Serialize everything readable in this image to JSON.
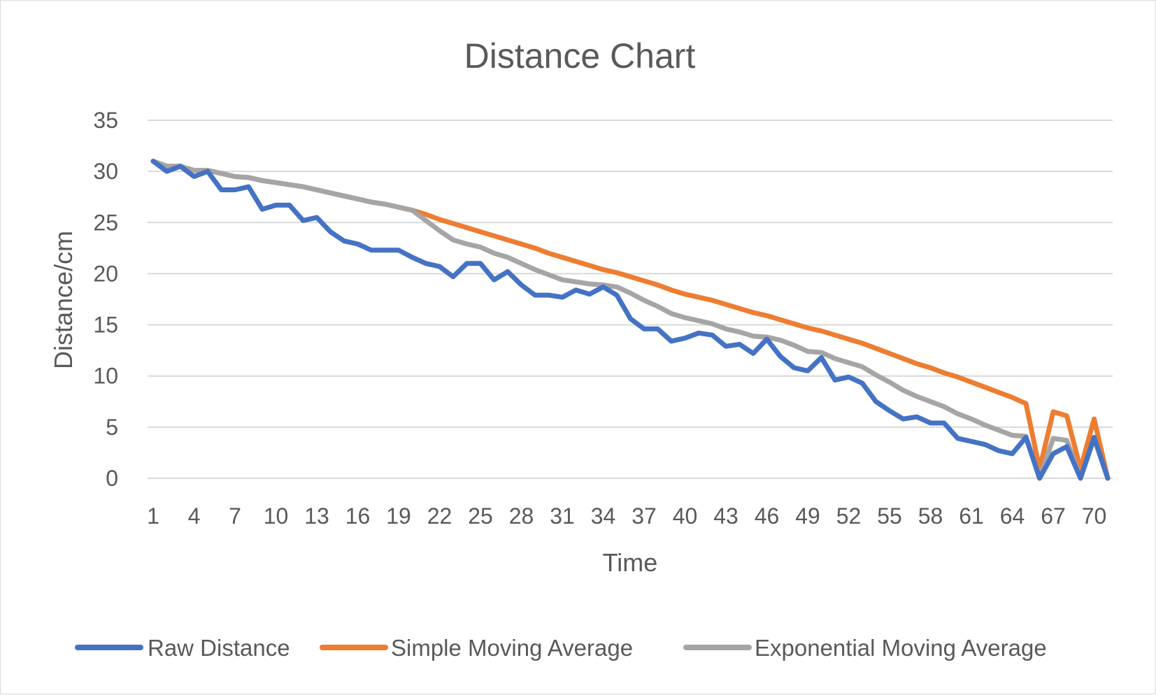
{
  "chart_data": {
    "type": "line",
    "title": "Distance Chart",
    "xlabel": "Time",
    "ylabel": "Distance/cm",
    "ylim": [
      0,
      35
    ],
    "yticks": [
      0,
      5,
      10,
      15,
      20,
      25,
      30,
      35
    ],
    "xlim": [
      1,
      71
    ],
    "xtick_labels": [
      "1",
      "4",
      "7",
      "10",
      "13",
      "16",
      "19",
      "22",
      "25",
      "28",
      "31",
      "34",
      "37",
      "40",
      "43",
      "46",
      "49",
      "52",
      "55",
      "58",
      "61",
      "64",
      "67",
      "70"
    ],
    "grid": true,
    "legend_position": "bottom",
    "series": [
      {
        "name": "Raw Distance",
        "color": "#4472c4",
        "values": [
          31,
          30,
          30.5,
          29.5,
          30,
          28.2,
          28.2,
          28.5,
          26.3,
          26.7,
          26.7,
          25.2,
          25.5,
          24.1,
          23.2,
          22.9,
          22.3,
          22.3,
          22.3,
          21.6,
          21,
          20.7,
          19.7,
          21,
          21,
          19.4,
          20.2,
          18.9,
          17.9,
          17.9,
          17.7,
          18.4,
          18,
          18.7,
          17.9,
          15.6,
          14.6,
          14.6,
          13.4,
          13.7,
          14.2,
          14,
          12.9,
          13.1,
          12.2,
          13.6,
          11.9,
          10.8,
          10.5,
          11.8,
          9.6,
          9.9,
          9.3,
          7.5,
          6.6,
          5.8,
          6,
          5.4,
          5.4,
          3.9,
          3.6,
          3.3,
          2.7,
          2.4,
          4,
          0,
          2.4,
          3.1,
          0,
          4,
          0
        ]
      },
      {
        "name": "Simple Moving Average",
        "color": "#ed7d31",
        "values": [
          31,
          30.5,
          30.5,
          30.1,
          30.1,
          29.8,
          29.5,
          29.4,
          29.1,
          28.9,
          28.7,
          28.5,
          28.2,
          27.9,
          27.6,
          27.3,
          27,
          26.8,
          26.5,
          26.2,
          25.8,
          25.3,
          24.9,
          24.5,
          24.1,
          23.7,
          23.3,
          22.9,
          22.5,
          22,
          21.6,
          21.2,
          20.8,
          20.4,
          20.1,
          19.7,
          19.3,
          18.9,
          18.4,
          18,
          17.7,
          17.4,
          17,
          16.6,
          16.2,
          15.9,
          15.5,
          15.1,
          14.7,
          14.4,
          14,
          13.6,
          13.2,
          12.7,
          12.2,
          11.7,
          11.2,
          10.8,
          10.3,
          9.9,
          9.4,
          8.9,
          8.4,
          7.9,
          7.3,
          0.9,
          6.5,
          6.1,
          0.9,
          5.8,
          0
        ]
      },
      {
        "name": "Exponential Moving Average",
        "color": "#a5a5a5",
        "values": [
          31,
          30.5,
          30.5,
          30.1,
          30.1,
          29.8,
          29.5,
          29.4,
          29.1,
          28.9,
          28.7,
          28.5,
          28.2,
          27.9,
          27.6,
          27.3,
          27,
          26.8,
          26.5,
          26.2,
          25.2,
          24.2,
          23.3,
          22.9,
          22.6,
          22,
          21.6,
          21,
          20.4,
          19.9,
          19.4,
          19.2,
          19,
          18.9,
          18.7,
          18.1,
          17.4,
          16.8,
          16.1,
          15.7,
          15.4,
          15.1,
          14.6,
          14.3,
          13.9,
          13.8,
          13.5,
          13,
          12.4,
          12.3,
          11.7,
          11.3,
          10.9,
          10.1,
          9.4,
          8.6,
          8,
          7.5,
          7,
          6.3,
          5.8,
          5.2,
          4.7,
          4.2,
          4.1,
          0,
          3.9,
          3.7,
          0,
          3.9,
          0
        ]
      }
    ]
  }
}
